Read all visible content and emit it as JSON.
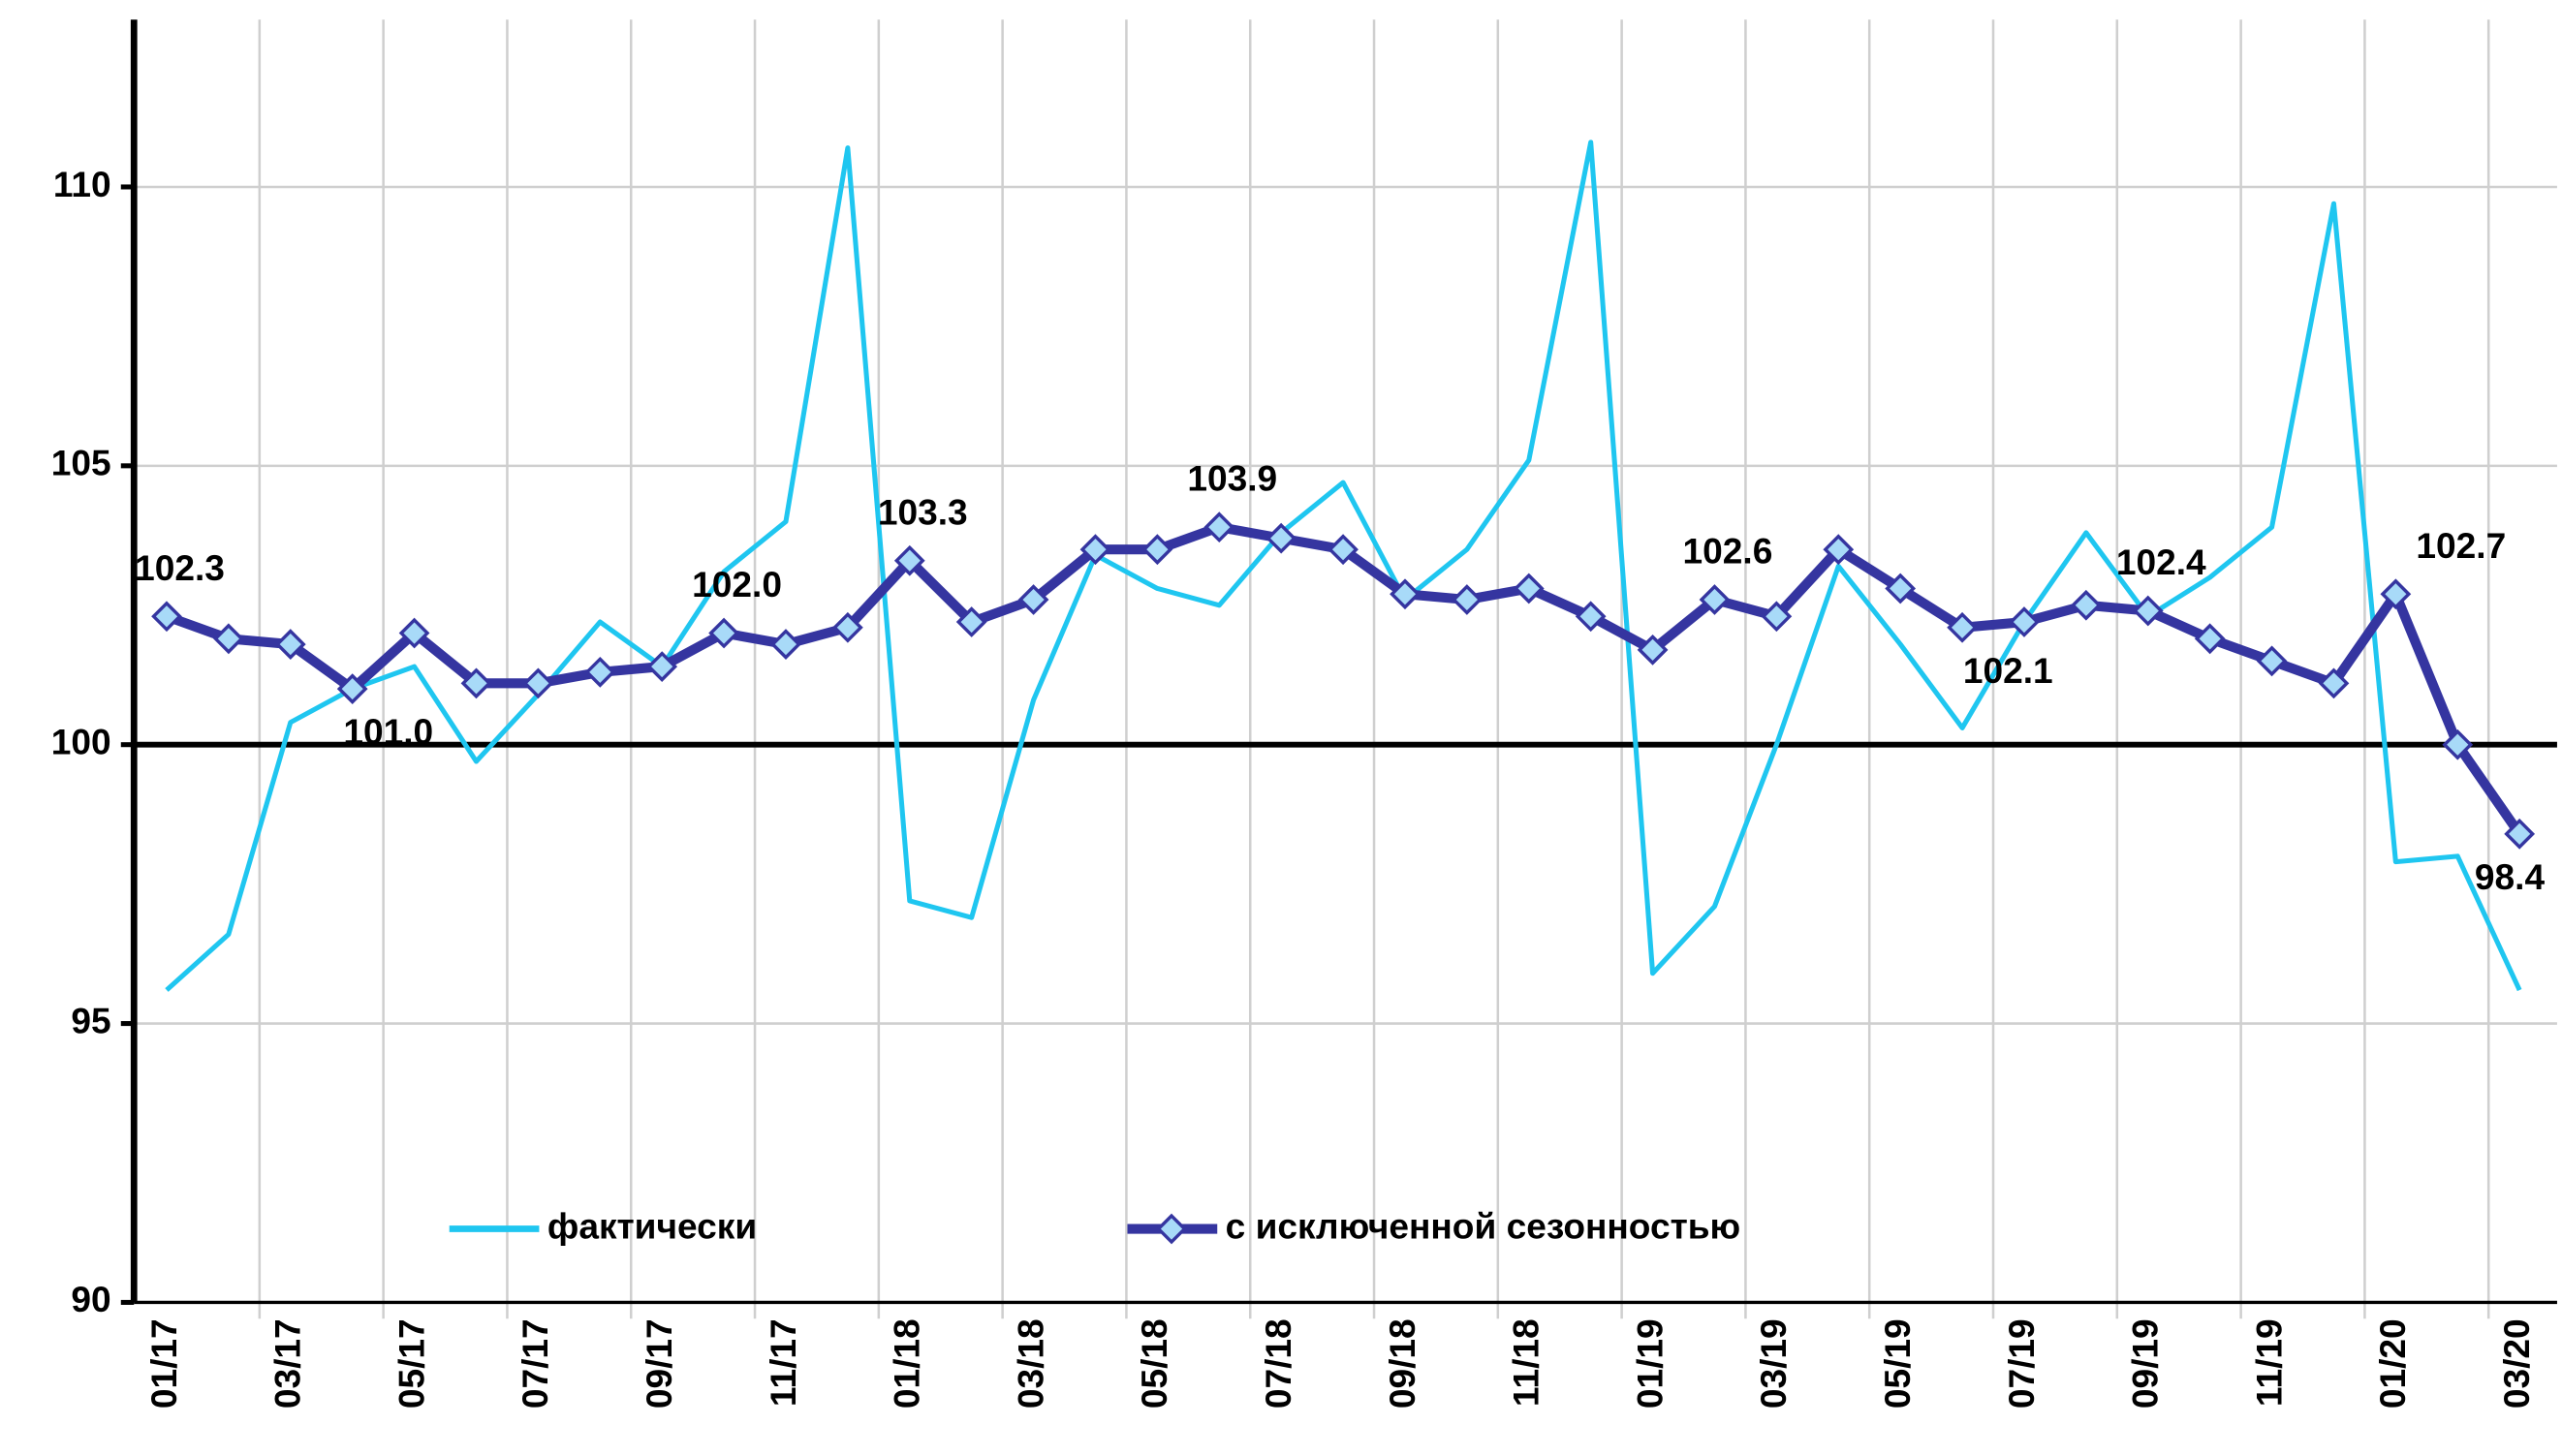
{
  "chart_data": {
    "type": "line",
    "categories": [
      "01/17",
      null,
      "03/17",
      null,
      "05/17",
      null,
      "07/17",
      null,
      "09/17",
      null,
      "11/17",
      null,
      "01/18",
      null,
      "03/18",
      null,
      "05/18",
      null,
      "07/18",
      null,
      "09/18",
      null,
      "11/18",
      null,
      "01/19",
      null,
      "03/19",
      null,
      "05/19",
      null,
      "07/19",
      null,
      "09/19",
      null,
      "11/19",
      null,
      "01/20",
      null,
      "03/20"
    ],
    "series": [
      {
        "name": "фактически",
        "color": "#1fc6f0",
        "values": [
          95.6,
          96.6,
          100.4,
          101.0,
          101.4,
          99.7,
          100.9,
          102.2,
          101.4,
          103.1,
          104.0,
          110.7,
          97.2,
          96.9,
          100.8,
          103.4,
          102.8,
          102.5,
          103.8,
          104.7,
          102.6,
          103.5,
          105.1,
          110.8,
          95.9,
          97.1,
          100.0,
          103.2,
          101.8,
          100.3,
          102.2,
          103.8,
          102.3,
          103.0,
          103.9,
          109.7,
          97.9,
          98.0,
          95.6
        ]
      },
      {
        "name": "с исключенной сезонностью",
        "color": "#3535a0",
        "marker_color": "#a8daf8",
        "values": [
          102.3,
          101.9,
          101.8,
          101.0,
          102.0,
          101.1,
          101.1,
          101.3,
          101.4,
          102.0,
          101.8,
          102.1,
          103.3,
          102.2,
          102.6,
          103.5,
          103.5,
          103.9,
          103.7,
          103.5,
          102.7,
          102.6,
          102.8,
          102.3,
          101.7,
          102.6,
          102.3,
          103.5,
          102.8,
          102.1,
          102.2,
          102.5,
          102.4,
          101.9,
          101.5,
          101.1,
          102.7,
          100.0,
          98.4
        ],
        "value_labels": [
          "102.3",
          null,
          null,
          "101.0",
          null,
          null,
          null,
          null,
          null,
          "102.0",
          null,
          null,
          "103.3",
          null,
          null,
          null,
          null,
          "103.9",
          null,
          null,
          null,
          null,
          null,
          null,
          null,
          "102.6",
          null,
          null,
          null,
          "102.1",
          null,
          null,
          "102.4",
          null,
          null,
          null,
          "102.7",
          null,
          "98.4"
        ]
      }
    ],
    "ylim": [
      90,
      113
    ],
    "yticks": [
      90,
      95,
      100,
      105,
      110
    ],
    "grid": true,
    "reference_line": 100,
    "legend": "bottom"
  }
}
